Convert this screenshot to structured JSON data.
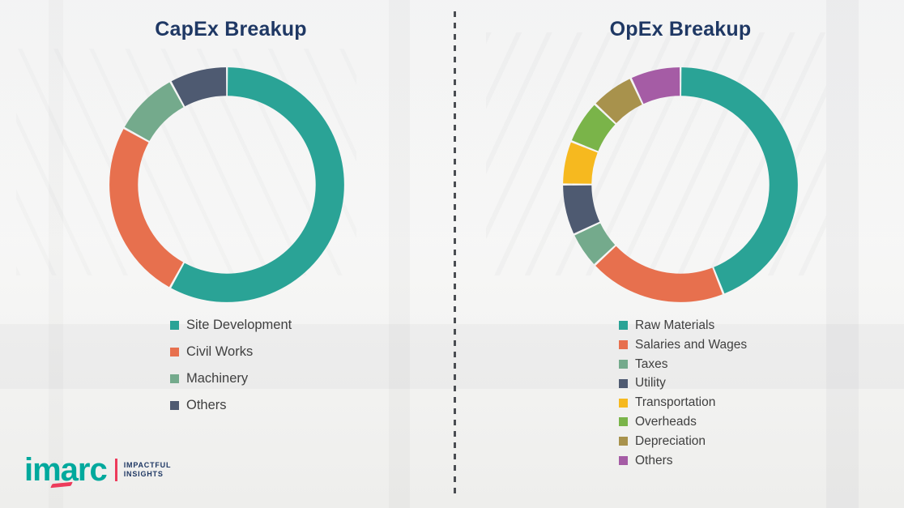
{
  "chart_data": [
    {
      "type": "donut",
      "title": "CapEx Breakup",
      "labels": [
        "Site Development",
        "Civil Works",
        "Machinery",
        "Others"
      ],
      "values": [
        58,
        25,
        9,
        8
      ],
      "colors": [
        "#2AA396",
        "#E7704E",
        "#74AA8C",
        "#4E5A71"
      ],
      "legend_position": "bottom",
      "data_labels": "none"
    },
    {
      "type": "donut",
      "title": "OpEx Breakup",
      "labels": [
        "Raw Materials",
        "Salaries and Wages",
        "Taxes",
        "Utility",
        "Transportation",
        "Overheads",
        "Depreciation",
        "Others"
      ],
      "values": [
        44,
        19,
        5,
        7,
        6,
        6,
        6,
        7
      ],
      "colors": [
        "#2AA396",
        "#E7704E",
        "#74AA8C",
        "#4E5A71",
        "#F6B91F",
        "#7AB449",
        "#A8924C",
        "#A55CA5"
      ],
      "legend_position": "bottom",
      "data_labels": "none"
    }
  ],
  "logo": {
    "brand": "imarc",
    "tagline_line1": "IMPACTFUL",
    "tagline_line2": "INSIGHTS",
    "brand_color": "#00A99D",
    "accent_color": "#ED3B5B"
  },
  "divider": {
    "style": "dashed-vertical"
  }
}
